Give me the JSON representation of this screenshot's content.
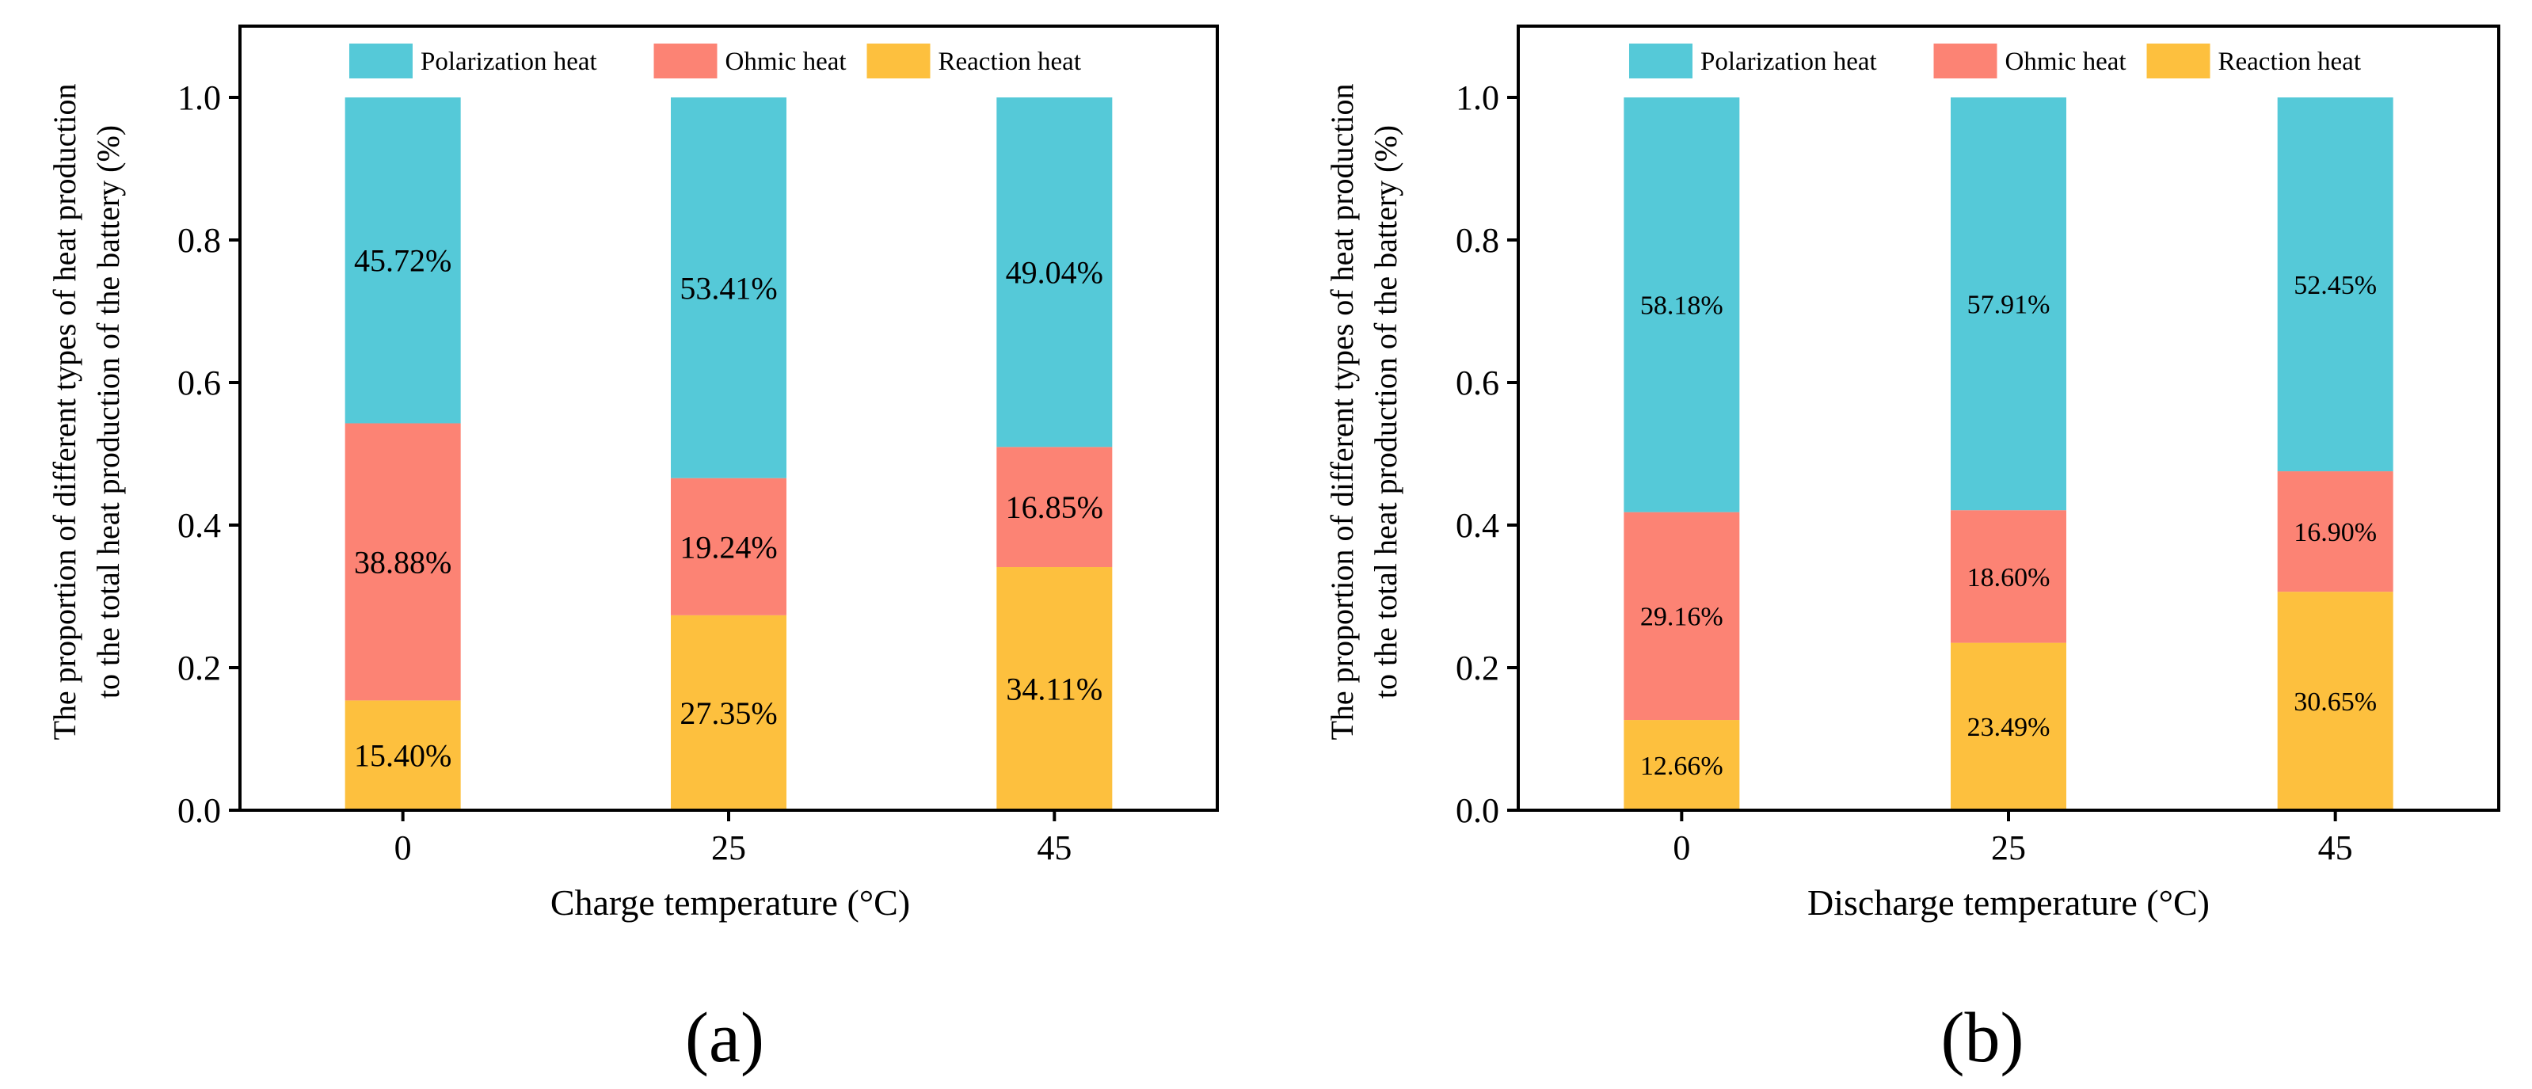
{
  "colors": {
    "polarization": "#55C9D8",
    "ohmic": "#FC8374",
    "reaction": "#FDC03E",
    "axis": "#000000",
    "background": "#ffffff"
  },
  "chart_data": [
    {
      "type": "bar",
      "stacked": true,
      "panel_label": "(a)",
      "title": "",
      "xlabel": "Charge temperature (°C)",
      "ylabel_line1": "The proportion of different types of heat production",
      "ylabel_line2": "to the total heat production of the battery (%)",
      "categories": [
        "0",
        "25",
        "45"
      ],
      "ylim": [
        0,
        1.1
      ],
      "yticks": [
        0.0,
        0.2,
        0.4,
        0.6,
        0.8,
        1.0
      ],
      "ytick_labels": [
        "0.0",
        "0.2",
        "0.4",
        "0.6",
        "0.8",
        "1.0"
      ],
      "legend": [
        "Polarization heat",
        "Ohmic heat",
        "Reaction heat"
      ],
      "legend_position": "top-center",
      "series": [
        {
          "name": "Reaction heat",
          "key": "reaction",
          "values": [
            0.154,
            0.2735,
            0.3411
          ],
          "labels": [
            "15.40%",
            "27.35%",
            "34.11%"
          ]
        },
        {
          "name": "Ohmic heat",
          "key": "ohmic",
          "values": [
            0.3888,
            0.1924,
            0.1685
          ],
          "labels": [
            "38.88%",
            "19.24%",
            "16.85%"
          ]
        },
        {
          "name": "Polarization heat",
          "key": "polarization",
          "values": [
            0.4572,
            0.5341,
            0.4904
          ],
          "labels": [
            "45.72%",
            "53.41%",
            "49.04%"
          ]
        }
      ]
    },
    {
      "type": "bar",
      "stacked": true,
      "panel_label": "(b)",
      "title": "",
      "xlabel": "Discharge temperature (°C)",
      "ylabel_line1": "The proportion of different types of heat production",
      "ylabel_line2": "to the total heat production of the battery (%)",
      "categories": [
        "0",
        "25",
        "45"
      ],
      "ylim": [
        0,
        1.1
      ],
      "yticks": [
        0.0,
        0.2,
        0.4,
        0.6,
        0.8,
        1.0
      ],
      "ytick_labels": [
        "0.0",
        "0.2",
        "0.4",
        "0.6",
        "0.8",
        "1.0"
      ],
      "legend": [
        "Polarization heat",
        "Ohmic heat",
        "Reaction heat"
      ],
      "legend_position": "top-center",
      "series": [
        {
          "name": "Reaction heat",
          "key": "reaction",
          "values": [
            0.1266,
            0.2349,
            0.3065
          ],
          "labels": [
            "12.66%",
            "23.49%",
            "30.65%"
          ]
        },
        {
          "name": "Ohmic heat",
          "key": "ohmic",
          "values": [
            0.2916,
            0.186,
            0.169
          ],
          "labels": [
            "29.16%",
            "18.60%",
            "16.90%"
          ]
        },
        {
          "name": "Polarization heat",
          "key": "polarization",
          "values": [
            0.5818,
            0.5791,
            0.5245
          ],
          "labels": [
            "58.18%",
            "57.91%",
            "52.45%"
          ]
        }
      ]
    }
  ]
}
